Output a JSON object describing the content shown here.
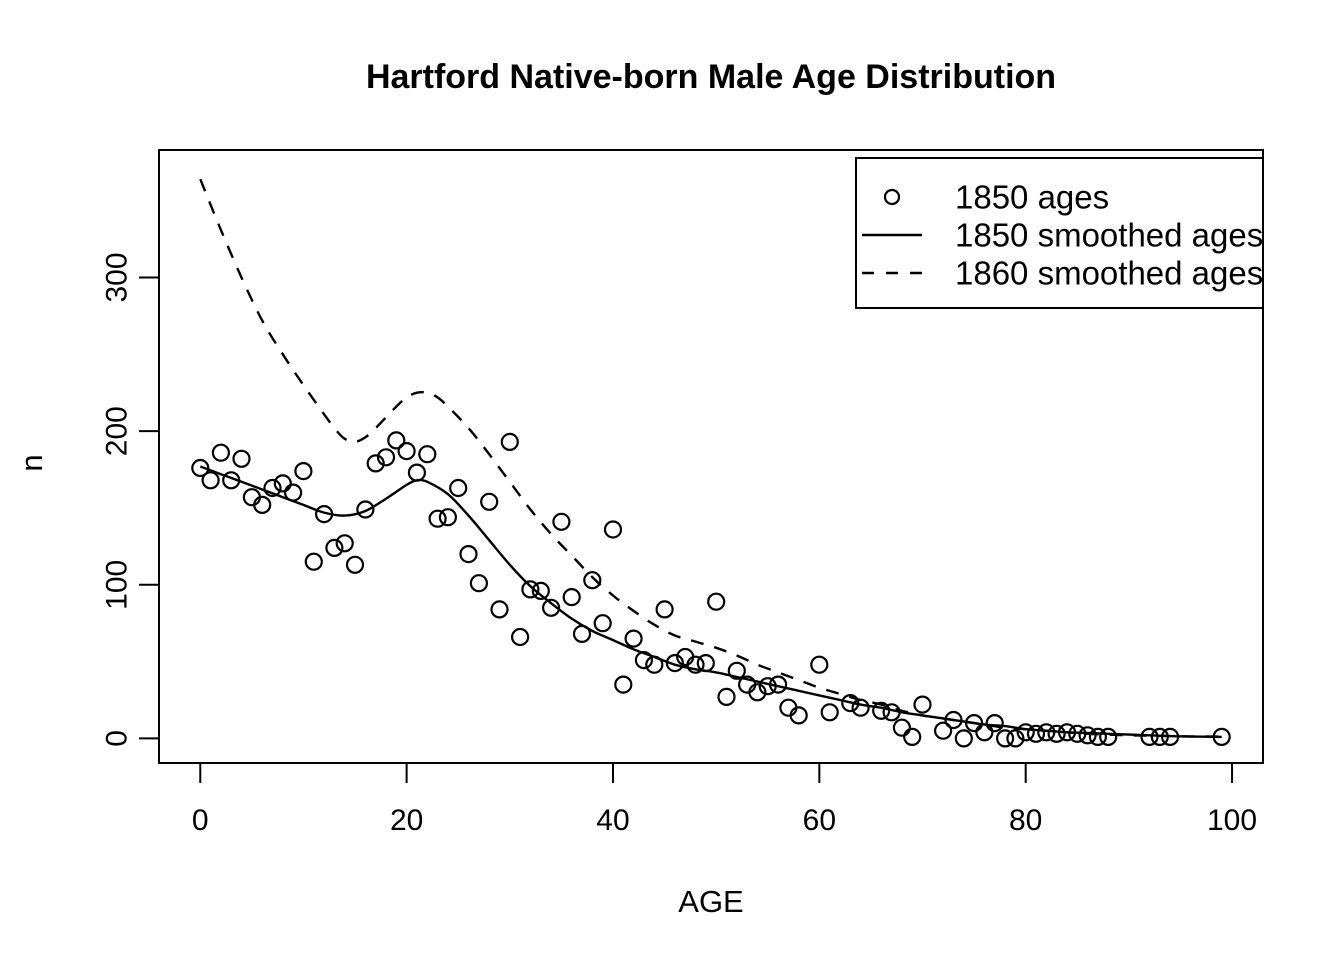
{
  "chart_data": {
    "type": "scatter",
    "title": "Hartford Native-born Male Age Distribution",
    "xlabel": "AGE",
    "ylabel": "n",
    "xlim": [
      -4,
      103
    ],
    "ylim": [
      -16,
      383
    ],
    "x_ticks": [
      0,
      20,
      40,
      60,
      80,
      100
    ],
    "y_ticks": [
      0,
      100,
      200,
      300
    ],
    "grid": false,
    "legend_position": "topright",
    "colors": {
      "foreground": "#000000",
      "background": "#ffffff"
    },
    "series": [
      {
        "name": "1850 ages",
        "kind": "points",
        "marker": "open-circle",
        "points": [
          [
            0,
            176
          ],
          [
            1,
            168
          ],
          [
            2,
            186
          ],
          [
            3,
            168
          ],
          [
            4,
            182
          ],
          [
            5,
            157
          ],
          [
            6,
            152
          ],
          [
            7,
            163
          ],
          [
            8,
            166
          ],
          [
            9,
            160
          ],
          [
            10,
            174
          ],
          [
            11,
            115
          ],
          [
            12,
            146
          ],
          [
            13,
            124
          ],
          [
            14,
            127
          ],
          [
            15,
            113
          ],
          [
            16,
            149
          ],
          [
            17,
            179
          ],
          [
            18,
            183
          ],
          [
            19,
            194
          ],
          [
            20,
            187
          ],
          [
            21,
            173
          ],
          [
            22,
            185
          ],
          [
            23,
            143
          ],
          [
            24,
            144
          ],
          [
            25,
            163
          ],
          [
            26,
            120
          ],
          [
            27,
            101
          ],
          [
            28,
            154
          ],
          [
            29,
            84
          ],
          [
            30,
            193
          ],
          [
            31,
            66
          ],
          [
            32,
            97
          ],
          [
            33,
            96
          ],
          [
            34,
            85
          ],
          [
            35,
            141
          ],
          [
            36,
            92
          ],
          [
            37,
            68
          ],
          [
            38,
            103
          ],
          [
            39,
            75
          ],
          [
            40,
            136
          ],
          [
            41,
            35
          ],
          [
            42,
            65
          ],
          [
            43,
            51
          ],
          [
            44,
            48
          ],
          [
            45,
            84
          ],
          [
            46,
            49
          ],
          [
            47,
            53
          ],
          [
            48,
            48
          ],
          [
            49,
            49
          ],
          [
            50,
            89
          ],
          [
            51,
            27
          ],
          [
            52,
            44
          ],
          [
            53,
            35
          ],
          [
            54,
            30
          ],
          [
            55,
            34
          ],
          [
            56,
            35
          ],
          [
            57,
            20
          ],
          [
            58,
            15
          ],
          [
            60,
            48
          ],
          [
            61,
            17
          ],
          [
            63,
            23
          ],
          [
            64,
            20
          ],
          [
            66,
            18
          ],
          [
            67,
            17
          ],
          [
            68,
            7
          ],
          [
            69,
            1
          ],
          [
            70,
            22
          ],
          [
            72,
            5
          ],
          [
            73,
            12
          ],
          [
            74,
            0
          ],
          [
            75,
            10
          ],
          [
            76,
            4
          ],
          [
            77,
            10
          ],
          [
            78,
            0
          ],
          [
            79,
            0
          ],
          [
            80,
            4
          ],
          [
            81,
            3
          ],
          [
            82,
            4
          ],
          [
            83,
            3
          ],
          [
            84,
            4
          ],
          [
            85,
            3
          ],
          [
            86,
            2
          ],
          [
            87,
            1
          ],
          [
            88,
            1
          ],
          [
            92,
            1
          ],
          [
            93,
            1
          ],
          [
            94,
            1
          ],
          [
            99,
            1
          ]
        ]
      },
      {
        "name": "1850 smoothed ages",
        "kind": "line",
        "linetype": "solid",
        "points": [
          [
            0,
            177
          ],
          [
            2,
            172
          ],
          [
            4,
            167
          ],
          [
            6,
            162
          ],
          [
            8,
            157
          ],
          [
            10,
            152
          ],
          [
            12,
            147
          ],
          [
            14,
            145
          ],
          [
            16,
            148
          ],
          [
            18,
            156
          ],
          [
            20,
            165
          ],
          [
            21,
            168
          ],
          [
            22,
            167
          ],
          [
            24,
            159
          ],
          [
            26,
            145
          ],
          [
            28,
            129
          ],
          [
            30,
            113
          ],
          [
            32,
            99
          ],
          [
            34,
            88
          ],
          [
            36,
            78
          ],
          [
            38,
            70
          ],
          [
            40,
            64
          ],
          [
            42,
            58
          ],
          [
            44,
            53
          ],
          [
            46,
            48
          ],
          [
            48,
            45
          ],
          [
            50,
            43
          ],
          [
            52,
            40
          ],
          [
            54,
            37
          ],
          [
            56,
            34
          ],
          [
            58,
            31
          ],
          [
            60,
            28
          ],
          [
            62,
            25
          ],
          [
            64,
            22
          ],
          [
            66,
            20
          ],
          [
            68,
            17
          ],
          [
            70,
            15
          ],
          [
            72,
            13
          ],
          [
            74,
            11
          ],
          [
            76,
            9
          ],
          [
            78,
            8
          ],
          [
            80,
            6
          ],
          [
            82,
            5
          ],
          [
            84,
            4
          ],
          [
            86,
            3.5
          ],
          [
            88,
            3
          ],
          [
            90,
            2.5
          ],
          [
            92,
            2
          ],
          [
            94,
            1.5
          ],
          [
            96,
            1.2
          ],
          [
            99,
            1
          ]
        ]
      },
      {
        "name": "1860 smoothed ages",
        "kind": "line",
        "linetype": "dashed",
        "points": [
          [
            0,
            364
          ],
          [
            2,
            331
          ],
          [
            4,
            300
          ],
          [
            6,
            272
          ],
          [
            8,
            250
          ],
          [
            10,
            230
          ],
          [
            12,
            211
          ],
          [
            13,
            202
          ],
          [
            14,
            195
          ],
          [
            15,
            193
          ],
          [
            16,
            196
          ],
          [
            17,
            202
          ],
          [
            18,
            209
          ],
          [
            19,
            216
          ],
          [
            20,
            222
          ],
          [
            21,
            225
          ],
          [
            22,
            225
          ],
          [
            23,
            222
          ],
          [
            24,
            216
          ],
          [
            26,
            202
          ],
          [
            28,
            185
          ],
          [
            30,
            167
          ],
          [
            32,
            149
          ],
          [
            34,
            133
          ],
          [
            36,
            119
          ],
          [
            38,
            105
          ],
          [
            40,
            93
          ],
          [
            42,
            83
          ],
          [
            44,
            74
          ],
          [
            46,
            67
          ],
          [
            48,
            63
          ],
          [
            50,
            59
          ],
          [
            52,
            54
          ],
          [
            54,
            48
          ],
          [
            56,
            43
          ],
          [
            58,
            38
          ],
          [
            60,
            33
          ],
          [
            62,
            29
          ],
          [
            64,
            25
          ],
          [
            66,
            22
          ],
          [
            68,
            18
          ],
          [
            70,
            15
          ],
          [
            72,
            13
          ],
          [
            74,
            11
          ],
          [
            76,
            9
          ],
          [
            78,
            7
          ],
          [
            80,
            6
          ],
          [
            82,
            5
          ],
          [
            84,
            4
          ],
          [
            86,
            3
          ],
          [
            88,
            2.5
          ],
          [
            90,
            2
          ],
          [
            92,
            1.8
          ],
          [
            94,
            1.5
          ],
          [
            96,
            1.3
          ],
          [
            99,
            1.2
          ]
        ]
      }
    ]
  }
}
